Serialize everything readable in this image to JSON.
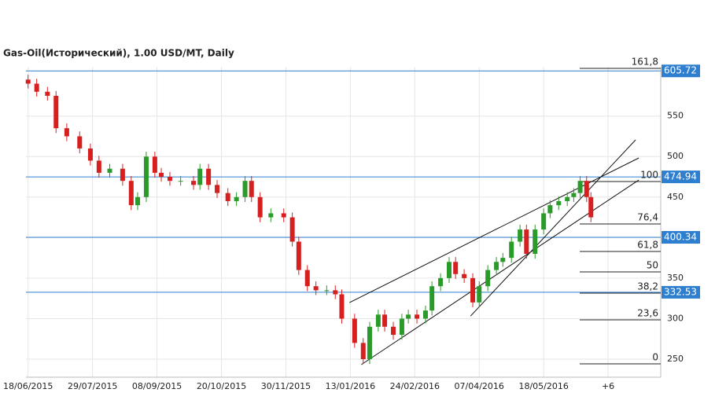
{
  "chart_data": {
    "type": "candlestick",
    "title": "Gas-Oil(Исторический), 1.00 USD/MT, Daily",
    "x": [
      0,
      4,
      9,
      13,
      18,
      24,
      29,
      33,
      38,
      44,
      48,
      51,
      55,
      59,
      62,
      66,
      71,
      77,
      80,
      84,
      88,
      93,
      97,
      101,
      104,
      108,
      113,
      119,
      123,
      126,
      130,
      134,
      139,
      143,
      146,
      152,
      156,
      159,
      163,
      166,
      170,
      174,
      177,
      181,
      185,
      188,
      192,
      196,
      199,
      203,
      207,
      210,
      214,
      218,
      221,
      225,
      229,
      232,
      236,
      240,
      243,
      247,
      251,
      254,
      257,
      260,
      262
    ],
    "open": [
      595,
      590,
      580,
      575,
      535,
      525,
      510,
      495,
      480,
      485,
      470,
      440,
      450,
      500,
      480,
      475,
      470,
      470,
      465,
      485,
      465,
      455,
      445,
      450,
      470,
      450,
      425,
      430,
      425,
      395,
      360,
      340,
      335,
      335,
      330,
      300,
      270,
      250,
      290,
      305,
      290,
      280,
      300,
      305,
      300,
      310,
      340,
      350,
      370,
      355,
      350,
      320,
      340,
      360,
      370,
      375,
      395,
      410,
      380,
      410,
      430,
      440,
      445,
      450,
      455,
      470,
      450
    ],
    "high": [
      601,
      596,
      586,
      581,
      541,
      531,
      516,
      501,
      491,
      491,
      476,
      456,
      506,
      506,
      486,
      481,
      476,
      476,
      491,
      491,
      471,
      461,
      456,
      476,
      476,
      456,
      436,
      436,
      431,
      401,
      366,
      346,
      341,
      341,
      336,
      306,
      276,
      296,
      311,
      311,
      296,
      306,
      311,
      311,
      316,
      346,
      356,
      376,
      376,
      361,
      356,
      346,
      366,
      376,
      381,
      401,
      416,
      416,
      416,
      436,
      446,
      451,
      456,
      461,
      476,
      476,
      456
    ],
    "low": [
      584,
      574,
      569,
      529,
      519,
      504,
      489,
      474,
      474,
      464,
      434,
      434,
      444,
      474,
      469,
      464,
      464,
      459,
      459,
      459,
      449,
      439,
      439,
      444,
      444,
      419,
      419,
      419,
      389,
      354,
      334,
      329,
      329,
      324,
      294,
      264,
      244,
      244,
      284,
      284,
      274,
      274,
      294,
      294,
      294,
      304,
      334,
      344,
      349,
      344,
      314,
      314,
      334,
      354,
      364,
      369,
      389,
      374,
      374,
      404,
      424,
      434,
      439,
      444,
      449,
      444,
      419
    ],
    "close": [
      590,
      580,
      575,
      535,
      525,
      510,
      495,
      480,
      485,
      470,
      440,
      450,
      500,
      480,
      475,
      470,
      470,
      465,
      485,
      465,
      455,
      445,
      450,
      470,
      450,
      425,
      430,
      425,
      395,
      360,
      340,
      335,
      335,
      330,
      300,
      270,
      250,
      290,
      305,
      290,
      280,
      300,
      305,
      300,
      310,
      340,
      350,
      370,
      355,
      350,
      320,
      340,
      360,
      370,
      375,
      395,
      410,
      380,
      410,
      430,
      440,
      445,
      450,
      455,
      470,
      450,
      425
    ],
    "up_color": "#2a9a2a",
    "down_color": "#d62020",
    "level_color": "#2f7fd0",
    "xlim": [
      -1,
      294.5
    ],
    "ylim": [
      227.7,
      610.8
    ],
    "xticks": [
      {
        "value": 0,
        "label": "18/06/2015"
      },
      {
        "value": 30,
        "label": "29/07/2015"
      },
      {
        "value": 60,
        "label": "08/09/2015"
      },
      {
        "value": 90,
        "label": "20/10/2015"
      },
      {
        "value": 120,
        "label": "30/11/2015"
      },
      {
        "value": 150,
        "label": "13/01/2016"
      },
      {
        "value": 180,
        "label": "24/02/2016"
      },
      {
        "value": 210,
        "label": "07/04/2016"
      },
      {
        "value": 240,
        "label": "18/05/2016"
      },
      {
        "value": 270,
        "label": "+6"
      }
    ],
    "yticks": [
      250,
      300,
      350,
      400,
      450,
      500,
      550
    ],
    "grid": true,
    "price_levels": [
      605.72,
      474.94,
      400.34,
      332.53
    ],
    "fib_levels": [
      {
        "value": 608.9,
        "label": "161,8"
      },
      {
        "value": 469.2,
        "label": "100"
      },
      {
        "value": 416.8,
        "label": "76,4"
      },
      {
        "value": 382.9,
        "label": "61,8"
      },
      {
        "value": 357.7,
        "label": "50"
      },
      {
        "value": 331.5,
        "label": "38,2"
      },
      {
        "value": 298.5,
        "label": "23,6"
      },
      {
        "value": 244.2,
        "label": "0"
      }
    ],
    "trend_lines": [
      {
        "x": [
          149.6,
          284.3
        ],
        "y": [
          319.8,
          498.3
        ]
      },
      {
        "x": [
          155.1,
          284.3
        ],
        "y": [
          243.2,
          471.1
        ]
      },
      {
        "x": [
          206.0,
          282.8
        ],
        "y": [
          303.3,
          520.6
        ]
      }
    ]
  }
}
